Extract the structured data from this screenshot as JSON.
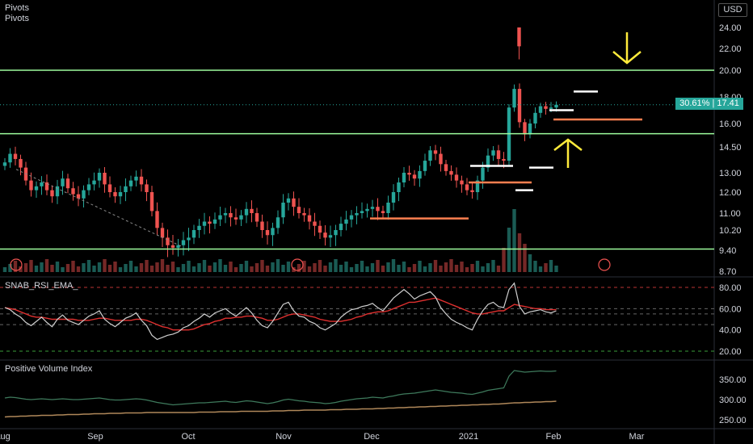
{
  "header": {
    "pivots_label_1": "Pivots",
    "pivots_label_2": "Pivots",
    "currency": "USD"
  },
  "price_tag": {
    "percent": "30.61%",
    "price": "17.41"
  },
  "colors": {
    "up": "#26a69a",
    "down": "#ef5350",
    "level_line": "#9dfc9d",
    "pivot_orange": "#ff7f50",
    "pivot_white": "#ffffff",
    "arrow_yellow": "#ffeb3b",
    "rsi_line": "#cfcfcf",
    "rsi_ema": "#e0302f",
    "pvi_line": "#3e7a5c",
    "pvi_ema": "#b0885a"
  },
  "chart_data": [
    {
      "type": "candlestick",
      "price_axis_ticks": [
        "24.00",
        "22.00",
        "20.00",
        "18.00",
        "16.00",
        "14.50",
        "13.00",
        "12.00",
        "11.00",
        "10.20",
        "9.40",
        "8.70"
      ],
      "x_ticks": [
        "Aug",
        "Sep",
        "Oct",
        "Nov",
        "Dec",
        "2021",
        "Feb",
        "Mar"
      ],
      "horizontal_levels": [
        20.0,
        15.35,
        9.45
      ],
      "close_series": [
        13.6,
        14.1,
        13.8,
        13.3,
        12.6,
        12.1,
        12.3,
        12.5,
        12.1,
        11.8,
        12.3,
        12.7,
        12.2,
        11.9,
        11.7,
        12.1,
        12.4,
        12.6,
        13.0,
        12.4,
        12.0,
        11.8,
        12.0,
        12.3,
        12.6,
        12.8,
        12.4,
        12.0,
        11.1,
        10.3,
        9.9,
        9.6,
        9.5,
        9.6,
        9.8,
        9.9,
        10.2,
        10.4,
        10.6,
        10.5,
        10.7,
        10.9,
        11.0,
        10.8,
        10.7,
        10.9,
        11.2,
        11.0,
        10.6,
        10.2,
        10.0,
        10.3,
        10.8,
        11.5,
        11.7,
        11.3,
        11.0,
        10.9,
        10.6,
        10.4,
        10.1,
        9.9,
        10.0,
        10.2,
        10.5,
        10.7,
        10.9,
        11.0,
        11.1,
        11.2,
        11.3,
        11.1,
        11.0,
        11.5,
        12.0,
        12.5,
        13.0,
        12.9,
        12.7,
        13.1,
        13.7,
        14.3,
        14.1,
        13.5,
        13.1,
        12.9,
        12.6,
        12.4,
        12.1,
        12.0,
        12.6,
        13.3,
        14.0,
        14.3,
        13.8,
        13.7,
        17.2,
        18.6,
        16.1,
        15.3,
        16.0,
        16.8,
        17.3,
        17.1,
        17.2,
        17.41
      ],
      "rsi_axis_ticks": [
        "80.00",
        "60.00",
        "40.00",
        "20.00"
      ],
      "rsi_levels": [
        80,
        60,
        55,
        45,
        20
      ],
      "rsi_values": [
        61,
        59,
        55,
        52,
        47,
        44,
        48,
        52,
        47,
        43,
        50,
        54,
        49,
        47,
        45,
        49,
        53,
        55,
        58,
        50,
        46,
        43,
        47,
        51,
        53,
        56,
        49,
        44,
        35,
        31,
        33,
        35,
        36,
        38,
        42,
        44,
        48,
        51,
        55,
        52,
        56,
        58,
        60,
        56,
        53,
        57,
        61,
        56,
        49,
        44,
        42,
        48,
        56,
        64,
        66,
        58,
        53,
        52,
        48,
        46,
        42,
        40,
        43,
        46,
        52,
        56,
        59,
        60,
        62,
        63,
        65,
        61,
        58,
        64,
        70,
        74,
        78,
        74,
        69,
        72,
        74,
        76,
        71,
        61,
        55,
        50,
        47,
        45,
        42,
        40,
        50,
        58,
        64,
        66,
        62,
        61,
        78,
        84,
        62,
        55,
        57,
        58,
        59,
        57,
        56,
        58
      ],
      "rsi_ema_values": [
        61,
        60,
        59,
        57,
        55,
        53,
        52,
        52,
        51,
        50,
        50,
        50,
        50,
        50,
        49,
        49,
        49,
        50,
        51,
        51,
        50,
        49,
        49,
        49,
        49,
        50,
        50,
        49,
        47,
        45,
        43,
        42,
        40,
        40,
        40,
        40,
        41,
        43,
        45,
        46,
        48,
        49,
        51,
        51,
        52,
        52,
        53,
        53,
        52,
        51,
        49,
        49,
        50,
        52,
        54,
        55,
        55,
        54,
        53,
        52,
        50,
        49,
        48,
        48,
        48,
        49,
        50,
        52,
        53,
        55,
        56,
        57,
        57,
        58,
        60,
        62,
        64,
        66,
        66,
        67,
        68,
        69,
        70,
        68,
        66,
        64,
        62,
        60,
        58,
        56,
        55,
        55,
        56,
        57,
        58,
        58,
        61,
        64,
        63,
        62,
        61,
        60,
        60,
        59,
        59,
        59
      ],
      "pvi_axis_ticks": [
        "350.00",
        "300.00",
        "250.00"
      ],
      "pvi_values": [
        304,
        306,
        305,
        303,
        301,
        300,
        301,
        302,
        301,
        300,
        301,
        302,
        301,
        300,
        300,
        301,
        302,
        303,
        304,
        302,
        300,
        299,
        299,
        300,
        301,
        302,
        301,
        299,
        296,
        293,
        291,
        289,
        287,
        288,
        289,
        290,
        291,
        292,
        292,
        293,
        294,
        295,
        296,
        294,
        293,
        295,
        297,
        296,
        294,
        292,
        290,
        292,
        295,
        299,
        301,
        299,
        297,
        296,
        294,
        293,
        292,
        290,
        291,
        293,
        296,
        298,
        300,
        302,
        303,
        304,
        306,
        305,
        304,
        307,
        309,
        312,
        314,
        315,
        316,
        318,
        320,
        322,
        324,
        322,
        320,
        318,
        317,
        316,
        314,
        313,
        316,
        319,
        323,
        325,
        327,
        329,
        358,
        372,
        370,
        368,
        369,
        370,
        371,
        370,
        370,
        371
      ],
      "pvi_ema_values": [
        257,
        258,
        258,
        259,
        259,
        260,
        260,
        261,
        261,
        261,
        262,
        262,
        263,
        263,
        263,
        264,
        264,
        265,
        265,
        265,
        266,
        266,
        266,
        267,
        267,
        267,
        267,
        268,
        268,
        268,
        268,
        268,
        268,
        268,
        268,
        268,
        268,
        269,
        269,
        269,
        269,
        270,
        270,
        270,
        270,
        271,
        271,
        271,
        271,
        271,
        271,
        272,
        272,
        272,
        273,
        273,
        273,
        274,
        274,
        274,
        274,
        274,
        275,
        275,
        275,
        276,
        276,
        276,
        277,
        277,
        277,
        278,
        278,
        279,
        279,
        280,
        280,
        281,
        281,
        282,
        282,
        283,
        283,
        284,
        284,
        285,
        285,
        286,
        286,
        287,
        287,
        288,
        288,
        289,
        289,
        290,
        291,
        292,
        292,
        293,
        293,
        294,
        294,
        295,
        295,
        296
      ]
    }
  ],
  "indicators": {
    "rsi_label": "SNAB_RSI_EMA_",
    "pvi_label": "Positive Volume Index"
  },
  "axes": {
    "price": [
      "24.00",
      "22.00",
      "20.00",
      "18.00",
      "16.00",
      "14.50",
      "13.00",
      "12.00",
      "11.00",
      "10.20",
      "9.40",
      "8.70"
    ],
    "rsi": [
      "80.00",
      "60.00",
      "40.00",
      "20.00"
    ],
    "pvi": [
      "350.00",
      "300.00",
      "250.00"
    ],
    "time": [
      "Aug",
      "Sep",
      "Oct",
      "Nov",
      "Dec",
      "2021",
      "Feb",
      "Mar"
    ]
  }
}
